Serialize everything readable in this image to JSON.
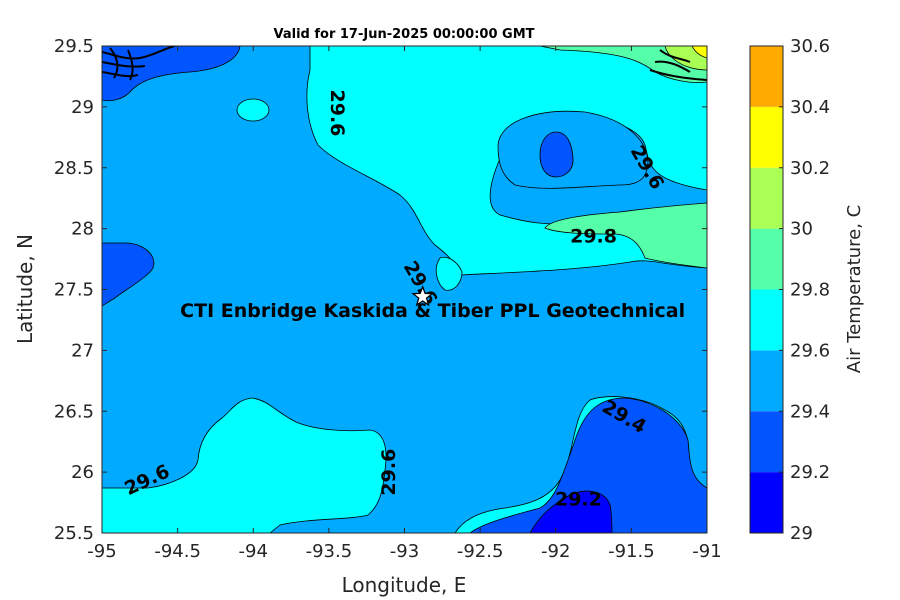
{
  "chart_data": {
    "type": "heatmap",
    "title": "Valid for 17-Jun-2025 00:00:00 GMT",
    "xlabel": "Longitude, E",
    "ylabel": "Latitude, N",
    "xlim": [
      -95,
      -91
    ],
    "ylim": [
      25.5,
      29.5
    ],
    "xticks": [
      "-95",
      "-94.5",
      "-94",
      "-93.5",
      "-93",
      "-92.5",
      "-92",
      "-91.5",
      "-91"
    ],
    "yticks": [
      "25.5",
      "26",
      "26.5",
      "27",
      "27.5",
      "28",
      "28.5",
      "29",
      "29.5"
    ],
    "colorbar": {
      "label": "Air Temperature, C",
      "ticks": [
        "29",
        "29.2",
        "29.4",
        "29.6",
        "29.8",
        "30",
        "30.2",
        "30.4",
        "30.6"
      ],
      "levels": [
        29,
        29.2,
        29.4,
        29.6,
        29.8,
        30,
        30.2,
        30.4,
        30.6
      ],
      "colors": [
        "#0000ff",
        "#0055ff",
        "#00aaff",
        "#00ffff",
        "#55ffaa",
        "#aaff55",
        "#ffff00",
        "#ffaa00",
        "#ff5500"
      ]
    },
    "contour_labels": [
      {
        "text": "29.6",
        "lon": -93.45,
        "lat": 28.95,
        "angle": 90
      },
      {
        "text": "29.6",
        "lon": -91.4,
        "lat": 28.5,
        "angle": 60
      },
      {
        "text": "29.8",
        "lon": -91.75,
        "lat": 27.93,
        "angle": 0
      },
      {
        "text": "29.6",
        "lon": -92.9,
        "lat": 27.55,
        "angle": 60
      },
      {
        "text": "29.6",
        "lon": -94.7,
        "lat": 25.93,
        "angle": -25
      },
      {
        "text": "29.6",
        "lon": -93.1,
        "lat": 26.0,
        "angle": -90
      },
      {
        "text": "29.4",
        "lon": -91.55,
        "lat": 26.45,
        "angle": 30
      },
      {
        "text": "29.2",
        "lon": -91.85,
        "lat": 25.77,
        "angle": 0
      }
    ],
    "site": {
      "name": "CTI Enbridge  Kaskida & Tiber PPL Geotechnical",
      "lon": -92.88,
      "lat": 27.44
    }
  }
}
